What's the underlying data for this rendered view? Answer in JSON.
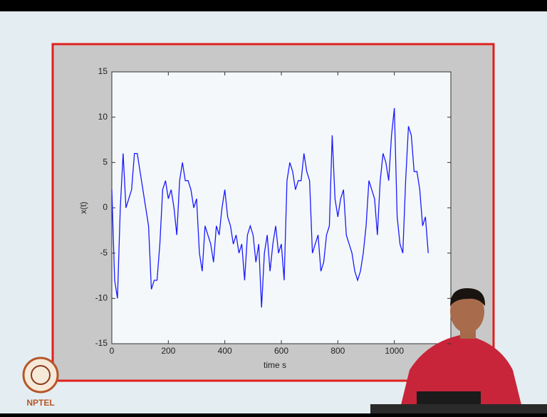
{
  "logo": "NPTEL",
  "chart_data": {
    "type": "line",
    "xlabel": "time s",
    "ylabel": "x(t)",
    "x": [
      0,
      10,
      20,
      30,
      40,
      50,
      60,
      70,
      80,
      90,
      100,
      110,
      120,
      130,
      140,
      150,
      160,
      170,
      180,
      190,
      200,
      210,
      220,
      230,
      240,
      250,
      260,
      270,
      280,
      290,
      300,
      310,
      320,
      330,
      340,
      350,
      360,
      370,
      380,
      390,
      400,
      410,
      420,
      430,
      440,
      450,
      460,
      470,
      480,
      490,
      500,
      510,
      520,
      530,
      540,
      550,
      560,
      570,
      580,
      590,
      600,
      610,
      620,
      630,
      640,
      650,
      660,
      670,
      680,
      690,
      700,
      710,
      720,
      730,
      740,
      750,
      760,
      770,
      780,
      790,
      800,
      810,
      820,
      830,
      840,
      850,
      860,
      870,
      880,
      890,
      900,
      910,
      920,
      930,
      940,
      950,
      960,
      970,
      980,
      990,
      1000,
      1010,
      1020,
      1030,
      1040,
      1050,
      1060,
      1070,
      1080,
      1090,
      1100,
      1110,
      1120
    ],
    "values": [
      2,
      -8,
      -10,
      0,
      6,
      0,
      1,
      2,
      6,
      6,
      4,
      2,
      0,
      -2,
      -9,
      -8,
      -8,
      -4,
      2,
      3,
      1,
      2,
      0,
      -3,
      3,
      5,
      3,
      3,
      2,
      0,
      1,
      -5,
      -7,
      -2,
      -3,
      -4,
      -6,
      -2,
      -3,
      0,
      2,
      -1,
      -2,
      -4,
      -3,
      -5,
      -4,
      -8,
      -3,
      -2,
      -3,
      -6,
      -4,
      -11,
      -5,
      -3,
      -7,
      -4,
      -2,
      -5,
      -4,
      -8,
      3,
      5,
      4,
      2,
      3,
      3,
      6,
      4,
      3,
      -5,
      -4,
      -3,
      -7,
      -6,
      -3,
      -2,
      8,
      1,
      -1,
      1,
      2,
      -3,
      -4,
      -5,
      -7,
      -8,
      -7,
      -5,
      -2,
      3,
      2,
      1,
      -3,
      3,
      6,
      5,
      3,
      8,
      11,
      -1,
      -4,
      -5,
      3,
      9,
      8,
      4,
      4,
      2,
      -2,
      -1,
      -5
    ],
    "color": "#1a1aff",
    "xlim": [
      0,
      1200
    ],
    "xticks": [
      0,
      200,
      400,
      600,
      800,
      1000
    ],
    "ylim": [
      -15,
      15
    ],
    "yticks": [
      -15,
      -10,
      -5,
      0,
      5,
      10,
      15
    ],
    "grid": false
  }
}
